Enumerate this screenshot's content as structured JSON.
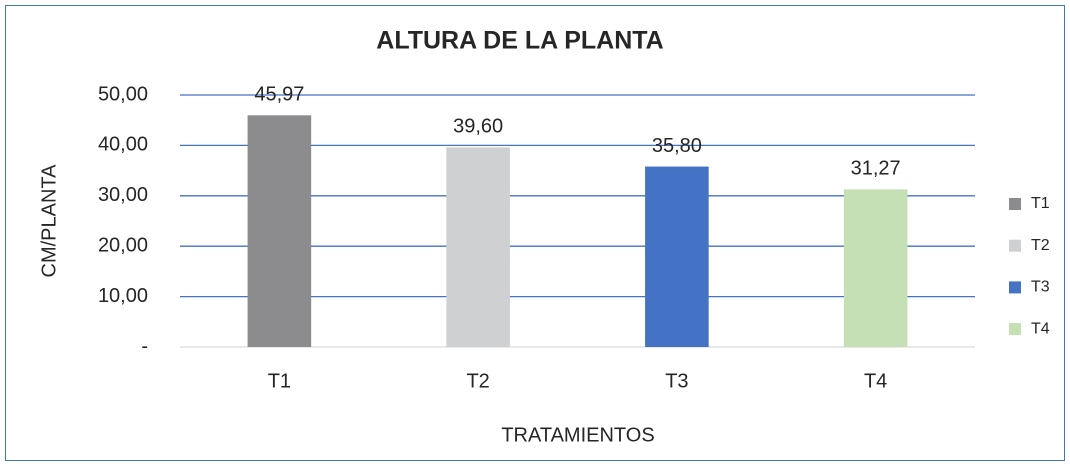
{
  "chart_data": {
    "type": "bar",
    "title": "ALTURA DE LA PLANTA",
    "x_label": "TRATAMIENTOS",
    "y_label": "CM/PLANTA",
    "categories": [
      "T1",
      "T2",
      "T3",
      "T4"
    ],
    "values": [
      45.97,
      39.6,
      35.8,
      31.27
    ],
    "value_labels": [
      "45,97",
      "39,60",
      "35,80",
      "31,27"
    ],
    "colors": [
      "#8c8c8f",
      "#cfd0d2",
      "#4472c4",
      "#c5e0b4"
    ],
    "ylim": [
      0,
      50
    ],
    "yticks": [
      {
        "value": 0,
        "label": "-"
      },
      {
        "value": 10,
        "label": "10,00"
      },
      {
        "value": 20,
        "label": "20,00"
      },
      {
        "value": 30,
        "label": "30,00"
      },
      {
        "value": 40,
        "label": "40,00"
      },
      {
        "value": 50,
        "label": "50,00"
      }
    ],
    "grid": true,
    "grid_color": "#4472c4",
    "legend": "right"
  }
}
